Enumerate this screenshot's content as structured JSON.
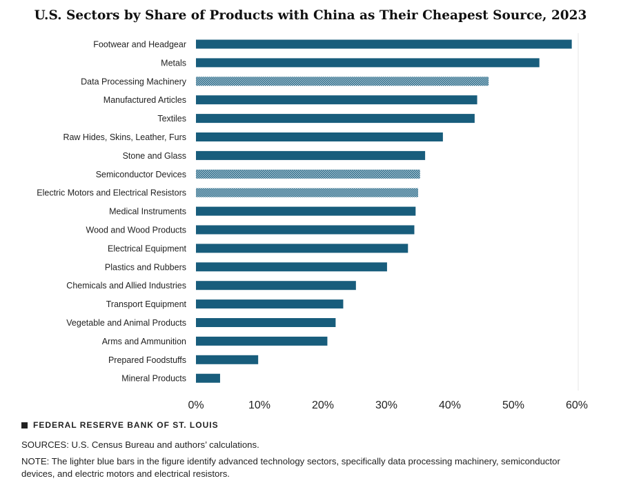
{
  "chart_data": {
    "type": "bar",
    "orientation": "horizontal",
    "title": "U.S. Sectors by Share of Products with China as Their Cheapest Source, 2023",
    "xlabel": "",
    "ylabel": "",
    "xlim": [
      0,
      60
    ],
    "x_ticks": [
      "0%",
      "10%",
      "20%",
      "30%",
      "40%",
      "50%",
      "60%"
    ],
    "categories": [
      "Footwear and Headgear",
      "Metals",
      "Data Processing Machinery",
      "Manufactured Articles",
      "Textiles",
      "Raw Hides, Skins, Leather, Furs",
      "Stone and Glass",
      "Semiconductor Devices",
      "Electric Motors and Electrical Resistors",
      "Medical Instruments",
      "Wood and Wood Products",
      "Electrical Equipment",
      "Plastics and Rubbers",
      "Chemicals and Allied Industries",
      "Transport Equipment",
      "Vegetable and Animal Products",
      "Arms and Ammunition",
      "Prepared Foodstuffs",
      "Mineral Products"
    ],
    "values": [
      59.2,
      54.1,
      46.1,
      44.3,
      43.9,
      38.9,
      36.1,
      35.3,
      35.0,
      34.6,
      34.4,
      33.4,
      30.1,
      25.2,
      23.2,
      22.0,
      20.7,
      9.8,
      3.8
    ],
    "advanced_technology": [
      false,
      false,
      true,
      false,
      false,
      false,
      false,
      true,
      true,
      false,
      false,
      false,
      false,
      false,
      false,
      false,
      false,
      false,
      false
    ],
    "colors": {
      "standard": "#185d7c",
      "advanced": "#6e9fb6"
    }
  },
  "footer": {
    "brand": "FEDERAL RESERVE BANK OF ST. LOUIS",
    "sources": "SOURCES: U.S. Census Bureau and authors’ calculations.",
    "note": "NOTE: The lighter blue bars in the figure identify advanced technology sectors, specifically data processing machinery, semiconductor devices, and electric motors and electrical resistors."
  }
}
